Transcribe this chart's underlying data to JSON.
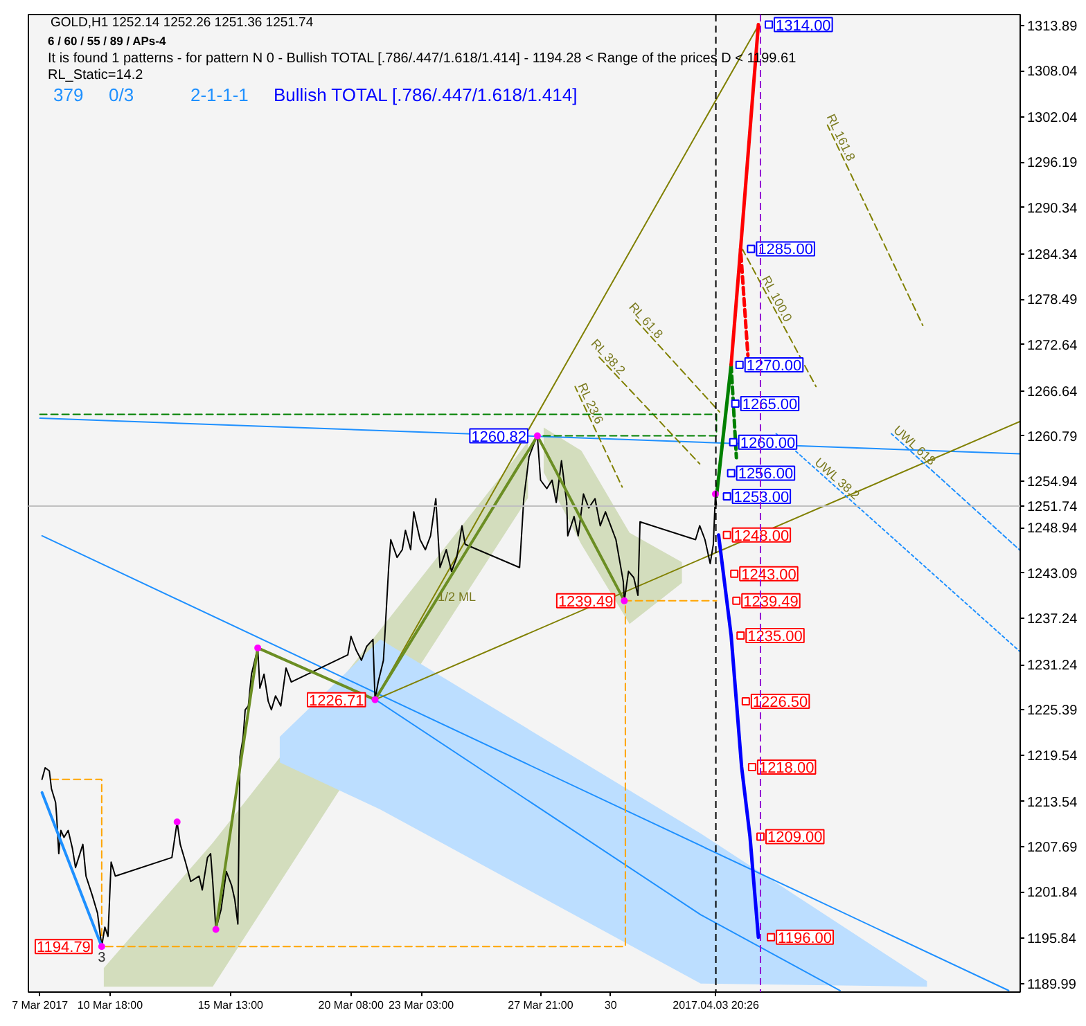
{
  "chart_data": {
    "type": "line",
    "title": "GOLD,H1  1252.14 1252.26 1251.36 1251.74",
    "subtitle": "6 / 60 / 55 / 89 / APs-4",
    "annotations": [
      "It is found 1 patterns  -  for pattern N 0 - Bullish TOTAL [.786/.447/1.618/1.414] - 1194.28 < Range of the prices D < 1199.61",
      "RL_Static=14.2",
      "379",
      "0/3",
      "2-1-1-1",
      "Bullish TOTAL [.786/.447/1.618/1.414]",
      {
        "text": "1/2 ML",
        "x": "2017-03-24T13:00",
        "y": 1240.0
      },
      {
        "text": "RL 161.8",
        "x": "2017-04-08T14:00",
        "y": 1299.0
      },
      {
        "text": "RL 100.0",
        "x": "2017-04-06T01:00",
        "y": 1278.1
      },
      {
        "text": "RL 61.8",
        "x": "2017-03-31T21:00",
        "y": 1275.1
      },
      {
        "text": "RL 38.2",
        "x": "2017-03-30T09:00",
        "y": 1270.4
      },
      {
        "text": "RL 23.6",
        "x": "2017-03-29T15:00",
        "y": 1264.6
      },
      {
        "text": "UWL 38.2",
        "x": "2017-04-08T12:00",
        "y": 1254.6
      },
      {
        "text": "UWL 618",
        "x": "2017-04-11T14:00",
        "y": 1258.9
      },
      {
        "text": "3",
        "x": "2017-03-10T10:00",
        "y": 1194.79
      }
    ],
    "xlim": [
      "2017-03-07T12:00",
      "2017-04-15T23:00"
    ],
    "xticks": [
      {
        "value": "2017-03-07T23:00",
        "label": "7 Mar 2017"
      },
      {
        "value": "2017-03-10T18:00",
        "label": "10 Mar 18:00"
      },
      {
        "value": "2017-03-15T13:00",
        "label": "15 Mar 13:00"
      },
      {
        "value": "2017-03-20T08:00",
        "label": "20 Mar 08:00"
      },
      {
        "value": "2017-03-23T03:00",
        "label": "23 Mar 03:00"
      },
      {
        "value": "2017-03-27T21:00",
        "label": "27 Mar 21:00"
      },
      {
        "value": "2017-03-30T16:00",
        "label": "30"
      }
    ],
    "ylim": [
      1188.9,
      1315.3
    ],
    "yticks": [
      1189.99,
      1195.84,
      1201.84,
      1207.69,
      1213.54,
      1219.54,
      1225.39,
      1231.24,
      1237.24,
      1243.09,
      1248.94,
      1254.94,
      1260.79,
      1266.64,
      1272.64,
      1278.49,
      1284.34,
      1290.34,
      1296.19,
      1302.04,
      1308.04,
      1313.89
    ],
    "series": [
      {
        "color": "#1e90ff",
        "x": [
          "2017-03-07T23:00",
          "2017-04-15T23:00"
        ],
        "values": [
          1263.1,
          1258.5
        ]
      },
      {
        "color": "#1e90ff",
        "x": [
          "2017-03-08T01:00",
          "2017-04-15T12:00"
        ],
        "values": [
          1247.9,
          1189.1
        ]
      },
      {
        "color": "#1e90ff",
        "x": [
          "2017-03-17T12:00",
          "2017-03-21T07:00",
          "2017-03-21T12:00",
          "2017-04-03T06:00",
          "2017-04-08T19:00",
          "2017-04-12T06:00"
        ],
        "values": [
          null,
          1226.71,
          1226.3,
          1198.9,
          1189.1,
          null
        ],
        "lower": [
          1218.6,
          null,
          1212.5,
          1190.0,
          null,
          1189.6
        ],
        "upper": [
          1221.9,
          null,
          1234.5,
          1209.4,
          null,
          1190.3
        ]
      },
      {
        "color": "#808000",
        "x": [
          "2017-03-21T07:00",
          "2017-04-05T13:00"
        ],
        "values": [
          1226.71,
          1313.9
        ]
      },
      {
        "color": "#808000",
        "x": [
          "2017-03-21T07:00",
          "2017-04-15T23:00"
        ],
        "values": [
          1226.71,
          1262.7
        ]
      },
      {
        "color": "#808000",
        "line_style": "dashed",
        "x": [
          "2017-04-08T07:00",
          "2017-04-12T02:00"
        ],
        "values": [
          1301.0,
          1275.1
        ]
      },
      {
        "color": "#808000",
        "line_style": "dashed",
        "x": [
          "2017-04-04T22:00",
          "2017-04-07T20:00"
        ],
        "values": [
          1284.9,
          1267.2
        ]
      },
      {
        "color": "#808000",
        "line_style": "dashed",
        "x": [
          "2017-03-31T16:00",
          "2017-04-04T00:00"
        ],
        "values": [
          1275.8,
          1263.9
        ]
      },
      {
        "color": "#808000",
        "line_style": "dashed",
        "x": [
          "2017-03-30T05:00",
          "2017-04-03T05:00"
        ],
        "values": [
          1271.0,
          1257.2
        ]
      },
      {
        "color": "#808000",
        "line_style": "dashed",
        "x": [
          "2017-03-29T06:00",
          "2017-03-31T03:00"
        ],
        "values": [
          1267.2,
          1254.2
        ]
      },
      {
        "color": "#1e90ff",
        "line_style": "dotted",
        "x": [
          "2017-04-06T06:00",
          "2017-04-15T23:00"
        ],
        "values": [
          1261.1,
          1232.9
        ]
      },
      {
        "color": "#1e90ff",
        "line_style": "dotted",
        "x": [
          "2017-04-10T20:00",
          "2017-04-15T23:00"
        ],
        "values": [
          1261.1,
          1246.0
        ]
      },
      {
        "color": "#ffa500",
        "line_style": "dashed",
        "x": [
          "2017-03-08T10:00",
          "2017-03-10T10:00",
          "2017-03-10T10:00",
          "2017-03-31T06:00",
          "2017-03-31T06:00",
          "2017-04-03T21:00"
        ],
        "values": [
          1216.4,
          1216.4,
          1194.79,
          1194.79,
          1239.49,
          1239.49
        ]
      },
      {
        "color": "#008000",
        "line_style": "dashed",
        "x": [
          "2017-03-07T23:00",
          "2017-04-03T21:00",
          "2017-04-03T21:00",
          "2017-03-27T18:00"
        ],
        "values": [
          1263.6,
          1263.6,
          1260.82,
          1260.82
        ]
      },
      {
        "color": "#000000",
        "x": [
          "2017-03-08T01:00",
          "2017-03-08T04:00",
          "2017-03-08T08:00",
          "2017-03-08T10:00",
          "2017-03-08T14:00",
          "2017-03-08T15:00",
          "2017-03-08T17:00",
          "2017-03-08T19:00",
          "2017-03-08T22:00",
          "2017-03-09T02:00",
          "2017-03-09T06:00",
          "2017-03-09T09:00",
          "2017-03-09T16:00",
          "2017-03-09T19:00",
          "2017-03-10T01:00",
          "2017-03-10T06:00",
          "2017-03-10T10:00",
          "2017-03-10T13:00",
          "2017-03-10T16:00",
          "2017-03-10T19:00",
          "2017-03-10T23:00",
          "2017-03-13T05:00",
          "2017-03-13T10:00",
          "2017-03-13T13:00",
          "2017-03-13T18:00",
          "2017-03-13T23:00",
          "2017-03-14T07:00",
          "2017-03-14T10:00",
          "2017-03-14T15:00",
          "2017-03-14T18:00",
          "2017-03-14T20:00",
          "2017-03-14T23:00",
          "2017-03-15T04:00",
          "2017-03-15T09:00",
          "2017-03-15T14:00",
          "2017-03-15T17:00",
          "2017-03-15T20:00",
          "2017-03-15T22:00",
          "2017-03-16T01:00",
          "2017-03-16T03:00",
          "2017-03-16T06:00",
          "2017-03-16T09:00",
          "2017-03-16T15:00",
          "2017-03-16T17:00",
          "2017-03-16T21:00",
          "2017-03-17T01:00",
          "2017-03-17T04:00",
          "2017-03-17T08:00",
          "2017-03-17T13:00",
          "2017-03-17T18:00",
          "2017-03-17T23:00",
          "2017-03-20T05:00",
          "2017-03-20T08:00",
          "2017-03-20T13:00",
          "2017-03-20T18:00",
          "2017-03-20T23:00",
          "2017-03-21T05:00",
          "2017-03-21T07:00",
          "2017-03-21T10:00",
          "2017-03-21T15:00",
          "2017-03-21T18:00",
          "2017-03-21T20:00",
          "2017-03-21T22:00",
          "2017-03-22T04:00",
          "2017-03-22T09:00",
          "2017-03-22T12:00",
          "2017-03-22T17:00",
          "2017-03-22T20:00",
          "2017-03-23T02:00",
          "2017-03-23T07:00",
          "2017-03-23T12:00",
          "2017-03-23T17:00",
          "2017-03-23T21:00",
          "2017-03-24T03:00",
          "2017-03-24T08:00",
          "2017-03-24T13:00",
          "2017-03-24T18:00",
          "2017-03-24T21:00",
          "2017-03-27T01:00",
          "2017-03-27T05:00",
          "2017-03-27T10:00",
          "2017-03-27T15:00",
          "2017-03-27T18:00",
          "2017-03-27T21:00",
          "2017-03-28T03:00",
          "2017-03-28T08:00",
          "2017-03-28T12:00",
          "2017-03-28T17:00",
          "2017-03-28T22:00",
          "2017-03-28T23:00",
          "2017-03-29T05:00",
          "2017-03-29T09:00",
          "2017-03-29T14:00",
          "2017-03-29T19:00",
          "2017-03-30T01:00",
          "2017-03-30T06:00",
          "2017-03-30T11:00",
          "2017-03-30T16:00",
          "2017-03-30T21:00",
          "2017-03-31T01:00",
          "2017-03-31T04:00",
          "2017-03-31T05:00",
          "2017-03-31T09:00",
          "2017-03-31T14:00",
          "2017-03-31T18:00",
          "2017-03-31T20:00",
          "2017-04-03T01:00",
          "2017-04-03T05:00",
          "2017-04-03T10:00",
          "2017-04-03T15:00",
          "2017-04-03T18:00",
          "2017-04-03T20:00",
          "2017-04-03T21:00"
        ],
        "values": [
          1216.4,
          1217.9,
          1217.5,
          1215.2,
          1213.4,
          1211.6,
          1206.8,
          1209.8,
          1208.9,
          1209.8,
          1207.5,
          1205.0,
          1208.0,
          1203.9,
          1201.4,
          1199.1,
          1194.79,
          1197.3,
          1196.1,
          1205.7,
          1203.9,
          1206.3,
          1210.9,
          1208.0,
          1205.7,
          1203.2,
          1203.9,
          1202.1,
          1206.3,
          1206.8,
          1203.2,
          1197.0,
          1199.6,
          1204.5,
          1202.7,
          1200.9,
          1197.7,
          1219.3,
          1221.8,
          1225.4,
          1225.9,
          1230.0,
          1233.4,
          1228.2,
          1230.0,
          1226.5,
          1225.4,
          1227.2,
          1225.9,
          1230.8,
          1229.0,
          1232.5,
          1234.9,
          1233.1,
          1231.8,
          1233.6,
          1234.5,
          1226.71,
          1229.0,
          1231.8,
          1239.0,
          1243.8,
          1247.4,
          1245.1,
          1246.1,
          1248.6,
          1246.1,
          1251.0,
          1247.4,
          1246.1,
          1247.9,
          1252.7,
          1243.8,
          1246.1,
          1243.3,
          1245.1,
          1249.2,
          1246.8,
          1243.8,
          1252.7,
          1258.1,
          1259.9,
          1260.82,
          1255.1,
          1254.0,
          1255.1,
          1252.2,
          1257.6,
          1252.2,
          1247.9,
          1250.4,
          1247.9,
          1253.3,
          1251.5,
          1252.7,
          1249.2,
          1251.0,
          1249.2,
          1247.4,
          1244.3,
          1242.0,
          1239.49,
          1243.3,
          1242.5,
          1240.2,
          1249.7,
          1247.4,
          1249.2,
          1247.4,
          1244.3,
          1246.8,
          1253.3,
          1251.74
        ]
      },
      {
        "color": "#1e90ff",
        "x": [
          "2017-03-08T01:00",
          "2017-03-10T10:00"
        ],
        "values": [
          1214.7,
          1194.79
        ],
        "value_labels": [
          null,
          "1194.79"
        ]
      },
      {
        "color": "#6b8e23",
        "x": [
          "2017-03-14T23:00",
          "2017-03-16T15:00",
          "2017-03-21T07:00"
        ],
        "values": [
          1197.0,
          1233.4,
          1226.71
        ],
        "value_labels": [
          null,
          null,
          "1226.71"
        ]
      },
      {
        "color": "#6b8e23",
        "x": [
          "2017-03-10T12:00",
          "2017-03-14T20:00",
          "2017-03-21T07:00",
          "2017-03-27T00:00",
          "2017-03-27T09:00",
          "2017-03-27T18:00"
        ],
        "values": [
          null,
          null,
          1226.71,
          1256.9,
          1258.8,
          1260.82
        ],
        "lower": [
          1189.6,
          1189.6,
          null,
          1250.9,
          1252.8,
          null
        ],
        "upper": [
          1192.0,
          1208.2,
          null,
          1258.5,
          1260.1,
          null
        ],
        "value_labels": [
          null,
          null,
          null,
          null,
          null,
          "1260.82"
        ]
      },
      {
        "color": "#6b8e23",
        "x": [
          "2017-03-27T18:00",
          "2017-03-28T00:00",
          "2017-03-29T12:00",
          "2017-03-31T05:00",
          "2017-03-31T10:00",
          "2017-04-02T12:00"
        ],
        "values": [
          1260.82,
          1259.3,
          1250.0,
          1239.49,
          null,
          null
        ],
        "lower": [
          null,
          1256.1,
          1246.8,
          null,
          1236.5,
          1241.8
        ],
        "upper": [
          null,
          1261.9,
          1258.9,
          null,
          1248.3,
          1244.5
        ],
        "value_labels": [
          null,
          null,
          null,
          "1239.49",
          null,
          null
        ]
      },
      {
        "color": "#008000",
        "x": [
          "2017-04-03T21:00",
          "2017-04-04T11:00"
        ],
        "values": [
          1253.0,
          1270.0
        ]
      },
      {
        "color": "#008000",
        "line_style": "dashed",
        "x": [
          "2017-04-04T11:00",
          "2017-04-04T16:00"
        ],
        "values": [
          1270.0,
          1258.0
        ]
      },
      {
        "color": "#ff0000",
        "x": [
          "2017-04-04T11:00",
          "2017-04-04T20:00",
          "2017-04-05T13:00"
        ],
        "values": [
          1270.0,
          1285.0,
          1314.0
        ]
      },
      {
        "color": "#ff0000",
        "line_style": "dashed",
        "x": [
          "2017-04-04T20:00",
          "2017-04-05T03:00"
        ],
        "values": [
          1285.0,
          1271.2
        ]
      },
      {
        "color": "#0000ff",
        "x": [
          "2017-04-03T23:00",
          "2017-04-04T11:00",
          "2017-04-04T16:00",
          "2017-04-04T21:00",
          "2017-04-05T05:00",
          "2017-04-05T13:00"
        ],
        "values": [
          1248.0,
          1235.0,
          1226.5,
          1218.0,
          1209.0,
          1196.0
        ]
      },
      {
        "type": "scatter",
        "color": "#ff00ff",
        "marker": "circle",
        "x": [
          "2017-03-10T10:00",
          "2017-03-13T10:00",
          "2017-03-14T23:00",
          "2017-03-16T15:00",
          "2017-03-21T07:00",
          "2017-03-27T18:00",
          "2017-03-31T05:00",
          "2017-04-03T20:00"
        ],
        "values": [
          1194.79,
          1210.9,
          1197.0,
          1233.4,
          1226.71,
          1260.82,
          1239.49,
          1253.3
        ]
      },
      {
        "type": "scatter",
        "color": "#0000ff",
        "marker": "square",
        "x": [
          "2017-04-05T23:00",
          "2017-04-05T06:00",
          "2017-04-04T19:00",
          "2017-04-04T15:00",
          "2017-04-04T13:00",
          "2017-04-04T11:00",
          "2017-04-04T07:00"
        ],
        "values": [
          1314.0,
          1285.0,
          1270.0,
          1265.0,
          1260.0,
          1256.0,
          1253.0
        ],
        "value_labels": [
          "1314.00",
          "1285.00",
          "1270.00",
          "1265.00",
          "1260.00",
          "1256.00",
          "1253.00"
        ]
      },
      {
        "type": "scatter",
        "color": "#ff0000",
        "marker": "square",
        "x": [
          "2017-04-04T07:00",
          "2017-04-04T14:00",
          "2017-04-04T16:00",
          "2017-04-04T20:00",
          "2017-04-05T01:00",
          "2017-04-05T07:00",
          "2017-04-05T15:00",
          "2017-04-06T01:00"
        ],
        "values": [
          1248.0,
          1243.0,
          1239.49,
          1235.0,
          1226.5,
          1218.0,
          1209.0,
          1196.0
        ],
        "value_labels": [
          "1248.00",
          "1243.00",
          "1239.49",
          "1235.00",
          "1226.50",
          "1218.00",
          "1209.00",
          "1196.00"
        ]
      }
    ],
    "ref_lines": [
      {
        "axis": "y",
        "value": 1251.74,
        "label": "1251.74",
        "color": "#c0c0c0"
      },
      {
        "axis": "x",
        "value": "2017-04-03T20:26",
        "label": "2017.04.03 20:26",
        "color": "#000000",
        "line_style": "dashed"
      },
      {
        "axis": "x",
        "value": "2017-04-05T15:00",
        "color": "#9400d3",
        "line_style": "dashed"
      }
    ]
  }
}
